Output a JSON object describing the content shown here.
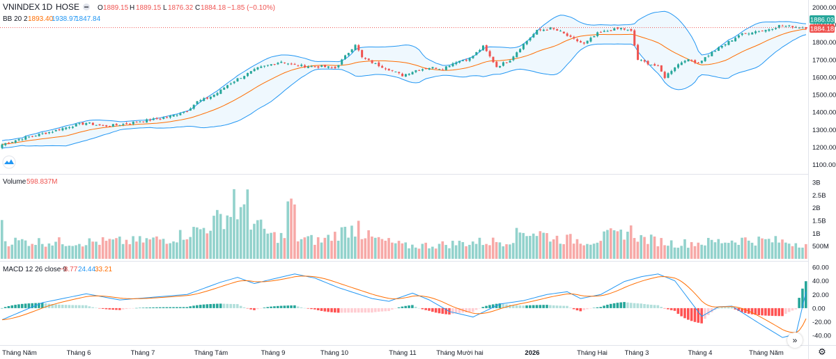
{
  "header": {
    "symbol": "VNINDEX",
    "interval": "1D",
    "exchange": "HOSE",
    "ohlc": {
      "o_label": "O",
      "o": "1889.15",
      "h_label": "H",
      "h": "1889.15",
      "l_label": "L",
      "l": "1876.32",
      "c_label": "C",
      "c": "1884.18",
      "chg": "−1.85 (−0.10%)"
    }
  },
  "bb_legend": {
    "label": "BB 20 2",
    "basis": "1893.40",
    "upper": "1938.97",
    "lower": "1847.84"
  },
  "volume_legend": {
    "label": "Volume",
    "value": "598.837M"
  },
  "macd_legend": {
    "label": "MACD 12 26 close 9",
    "hist": "−8.77",
    "macd": "24.44",
    "signal": "33.21"
  },
  "price_badges": {
    "upper": "1886.03",
    "last": "1884.18"
  },
  "colors": {
    "up": "#26a69a",
    "down": "#ef5350",
    "bb_band": "#2196f3",
    "bb_basis": "#ff6d00",
    "macd": "#2196f3",
    "signal": "#ff6d00"
  },
  "icons": {
    "scroll": "chevron-double-right-icon",
    "settings": "gear-icon",
    "logo": "tradingview-logo-icon"
  },
  "scroll_glyph": "»",
  "settings_glyph": "⚙",
  "chart_data": {
    "type": "candlestick",
    "price_axis": {
      "ticks": [
        "2000.00",
        "1900.00",
        "1800.00",
        "1700.00",
        "1600.00",
        "1500.00",
        "1400.00",
        "1300.00",
        "1200.00",
        "1100.00"
      ],
      "range": [
        1070,
        2010
      ]
    },
    "volume_axis": {
      "ticks": [
        "3B",
        "2.5B",
        "2B",
        "1.5B",
        "1B",
        "500M"
      ],
      "range": [
        0,
        3000
      ]
    },
    "macd_axis": {
      "ticks": [
        "60.00",
        "40.00",
        "20.00",
        "0.00",
        "-20.00",
        "-40.00"
      ],
      "range": [
        -50,
        62
      ]
    },
    "time_labels": [
      "Tháng Năm",
      "Tháng 6",
      "Tháng 7",
      "Tháng Tám",
      "Tháng 9",
      "Tháng 10",
      "Tháng 11",
      "Tháng Mười hai",
      "2026",
      "Tháng Hai",
      "Tháng 3",
      "Tháng 4",
      "Tháng Năm"
    ],
    "price_anchors": [
      [
        0,
        1215
      ],
      [
        5,
        1245
      ],
      [
        10,
        1268
      ],
      [
        15,
        1290
      ],
      [
        20,
        1318
      ],
      [
        25,
        1338
      ],
      [
        30,
        1320
      ],
      [
        35,
        1328
      ],
      [
        40,
        1345
      ],
      [
        45,
        1358
      ],
      [
        50,
        1375
      ],
      [
        55,
        1410
      ],
      [
        58,
        1460
      ],
      [
        61,
        1480
      ],
      [
        64,
        1510
      ],
      [
        67,
        1555
      ],
      [
        70,
        1590
      ],
      [
        73,
        1620
      ],
      [
        76,
        1650
      ],
      [
        79,
        1668
      ],
      [
        83,
        1690
      ],
      [
        87,
        1668
      ],
      [
        91,
        1662
      ],
      [
        95,
        1660
      ],
      [
        99,
        1652
      ],
      [
        103,
        1742
      ],
      [
        105,
        1790
      ],
      [
        107,
        1712
      ],
      [
        111,
        1675
      ],
      [
        115,
        1645
      ],
      [
        119,
        1610
      ],
      [
        123,
        1640
      ],
      [
        127,
        1655
      ],
      [
        131,
        1650
      ],
      [
        135,
        1690
      ],
      [
        139,
        1705
      ],
      [
        143,
        1775
      ],
      [
        147,
        1660
      ],
      [
        151,
        1700
      ],
      [
        155,
        1790
      ],
      [
        159,
        1865
      ],
      [
        163,
        1880
      ],
      [
        166,
        1860
      ],
      [
        169,
        1825
      ],
      [
        173,
        1790
      ],
      [
        177,
        1850
      ],
      [
        181,
        1870
      ],
      [
        184,
        1880
      ],
      [
        187,
        1862
      ],
      [
        189,
        1700
      ],
      [
        192,
        1680
      ],
      [
        195,
        1660
      ],
      [
        197,
        1600
      ],
      [
        200,
        1660
      ],
      [
        203,
        1700
      ],
      [
        207,
        1685
      ],
      [
        211,
        1740
      ],
      [
        215,
        1790
      ],
      [
        219,
        1840
      ],
      [
        223,
        1860
      ],
      [
        227,
        1870
      ],
      [
        231,
        1895
      ],
      [
        235,
        1890
      ],
      [
        239,
        1884
      ]
    ],
    "volume_anchors": [
      [
        0,
        700
      ],
      [
        20,
        650
      ],
      [
        40,
        690
      ],
      [
        50,
        800
      ],
      [
        55,
        1000
      ],
      [
        60,
        1200
      ],
      [
        65,
        1600
      ],
      [
        70,
        1900
      ],
      [
        75,
        1400
      ],
      [
        80,
        900
      ],
      [
        85,
        850
      ],
      [
        95,
        700
      ],
      [
        100,
        1000
      ],
      [
        104,
        1200
      ],
      [
        110,
        800
      ],
      [
        120,
        500
      ],
      [
        130,
        550
      ],
      [
        140,
        650
      ],
      [
        150,
        700
      ],
      [
        155,
        1100
      ],
      [
        160,
        1000
      ],
      [
        165,
        800
      ],
      [
        175,
        700
      ],
      [
        183,
        1000
      ],
      [
        187,
        1100
      ],
      [
        190,
        800
      ],
      [
        200,
        600
      ],
      [
        210,
        650
      ],
      [
        220,
        750
      ],
      [
        230,
        700
      ],
      [
        239,
        600
      ]
    ],
    "volume_spikes": [
      [
        69,
        2730
      ],
      [
        73,
        2720
      ],
      [
        85,
        2250
      ],
      [
        86,
        2360
      ],
      [
        87,
        2130
      ],
      [
        0,
        1520
      ],
      [
        106,
        1490
      ],
      [
        182,
        1120
      ],
      [
        183,
        1080
      ]
    ],
    "macd_anchors": [
      [
        0,
        -17
      ],
      [
        12,
        8
      ],
      [
        25,
        21
      ],
      [
        35,
        12
      ],
      [
        45,
        16
      ],
      [
        55,
        20
      ],
      [
        65,
        38
      ],
      [
        70,
        45
      ],
      [
        75,
        36
      ],
      [
        80,
        42
      ],
      [
        87,
        50
      ],
      [
        93,
        44
      ],
      [
        100,
        30
      ],
      [
        110,
        14
      ],
      [
        115,
        10
      ],
      [
        122,
        22
      ],
      [
        127,
        12
      ],
      [
        133,
        -5
      ],
      [
        140,
        -13
      ],
      [
        148,
        6
      ],
      [
        155,
        11
      ],
      [
        162,
        20
      ],
      [
        168,
        24
      ],
      [
        172,
        14
      ],
      [
        178,
        20
      ],
      [
        185,
        39
      ],
      [
        190,
        46
      ],
      [
        195,
        50
      ],
      [
        200,
        40
      ],
      [
        208,
        -12
      ],
      [
        213,
        2
      ],
      [
        217,
        3
      ],
      [
        225,
        -22
      ],
      [
        232,
        -43
      ],
      [
        236,
        -38
      ],
      [
        239,
        24
      ]
    ]
  }
}
